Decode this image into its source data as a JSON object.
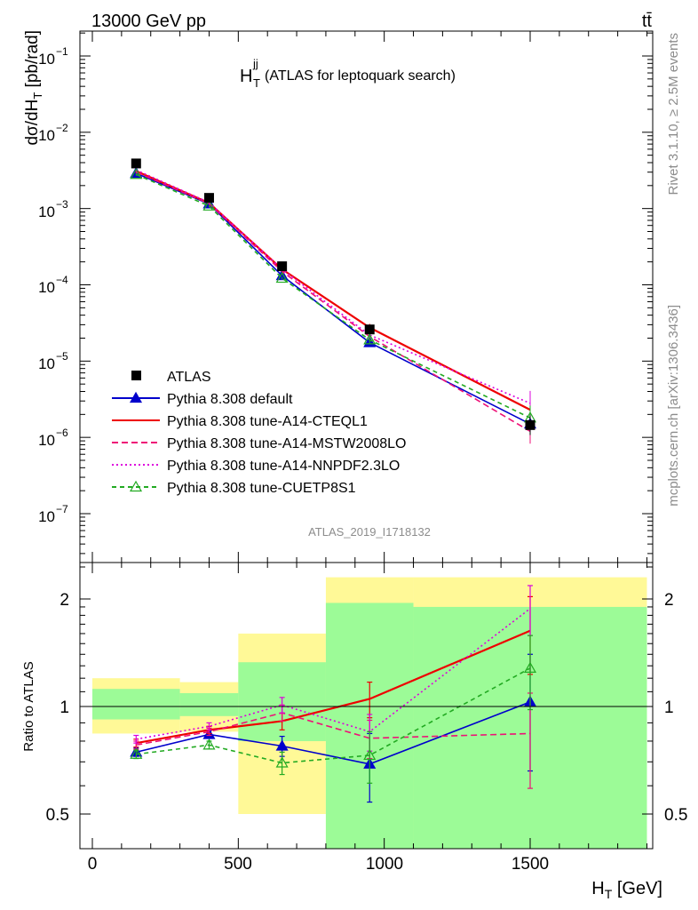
{
  "header": {
    "energy_label": "13000 GeV pp",
    "process_label": "tt̄",
    "title_main": "H",
    "title_sup": "jj",
    "title_sub": "T",
    "title_rest": " (ATLAS for leptoquark search)",
    "analysis_id": "ATLAS_2019_I1718132",
    "side_note_top": "Rivet 3.1.10, ≥ 2.5M events",
    "side_note_bottom": "mcplots.cern.ch [arXiv:1306.3436]"
  },
  "axes": {
    "main_ylabel_a": "dσ/dH",
    "main_ylabel_sub": "T",
    "main_ylabel_b": " [pb/rad]",
    "ratio_ylabel": "Ratio to ATLAS",
    "xlabel_a": "H",
    "xlabel_sub": "T",
    "xlabel_b": " [GeV]",
    "x_ticks": [
      "0",
      "500",
      "1000",
      "1500"
    ],
    "y_main_ticks": [
      {
        "base": "10",
        "exp": "−1"
      },
      {
        "base": "10",
        "exp": "−2"
      },
      {
        "base": "10",
        "exp": "−3"
      },
      {
        "base": "10",
        "exp": "−4"
      },
      {
        "base": "10",
        "exp": "−5"
      },
      {
        "base": "10",
        "exp": "−6"
      },
      {
        "base": "10",
        "exp": "−7"
      }
    ],
    "y_ratio_ticks": [
      "2",
      "1",
      "0.5"
    ]
  },
  "chart_data": {
    "type": "line",
    "x_range": [
      -40,
      1900
    ],
    "main": {
      "yscale": "log",
      "ylim": [
        1e-08,
        0.2
      ],
      "x": [
        150,
        400,
        650,
        950,
        1500
      ],
      "data": {
        "name": "ATLAS",
        "x_bins": [
          [
            0,
            300
          ],
          [
            300,
            500
          ],
          [
            500,
            800
          ],
          [
            800,
            1100
          ],
          [
            1100,
            1900
          ]
        ],
        "values": [
          0.0039,
          0.00138,
          0.000175,
          2.6e-05,
          1.45e-06
        ]
      },
      "series": [
        {
          "name": "Pythia 8.308 default",
          "color": "#0000cc",
          "dash": "",
          "marker": "filled-triangle",
          "values": [
            0.0029,
            0.00115,
            0.000132,
            1.75e-05,
            1.5e-06
          ]
        },
        {
          "name": "Pythia 8.308 tune-A14-CTEQL1",
          "color": "#ee0000",
          "dash": "",
          "marker": "",
          "values": [
            0.0031,
            0.00118,
            0.00016,
            2.75e-05,
            2.3e-06
          ]
        },
        {
          "name": "Pythia 8.308 tune-A14-MSTW2008LO",
          "color": "#ee1177",
          "dash": "7,4",
          "marker": "",
          "values": [
            0.003,
            0.00116,
            0.00015,
            2.1e-05,
            1.2e-06
          ]
        },
        {
          "name": "Pythia 8.308 tune-A14-NNPDF2.3LO",
          "color": "#dd00dd",
          "dash": "2,3",
          "marker": "",
          "values": [
            0.0032,
            0.0012,
            0.00016,
            2.2e-05,
            2.8e-06
          ]
        },
        {
          "name": "Pythia 8.308 tune-CUETP8S1",
          "color": "#22aa22",
          "dash": "5,4",
          "marker": "open-triangle",
          "values": [
            0.0028,
            0.00108,
            0.000122,
            1.9e-05,
            1.8e-06
          ]
        }
      ]
    },
    "ratio": {
      "yscale": "log",
      "ylim": [
        0.4,
        2.3
      ],
      "bands": [
        {
          "x": [
            0,
            300
          ],
          "yellow": [
            0.84,
            1.2
          ],
          "green": [
            0.92,
            1.12
          ]
        },
        {
          "x": [
            300,
            500
          ],
          "yellow": [
            0.85,
            1.17
          ],
          "green": [
            0.94,
            1.09
          ]
        },
        {
          "x": [
            500,
            800
          ],
          "yellow": [
            0.5,
            1.6
          ],
          "green": [
            0.8,
            1.33
          ]
        },
        {
          "x": [
            800,
            1100
          ],
          "yellow": [
            0.4,
            2.3
          ],
          "green": [
            0.4,
            1.95
          ]
        },
        {
          "x": [
            1100,
            1900
          ],
          "yellow": [
            0.4,
            2.3
          ],
          "green": [
            0.4,
            1.9
          ]
        }
      ],
      "series": [
        {
          "name": "Pythia 8.308 default",
          "values": [
            0.745,
            0.835,
            0.775,
            0.69,
            1.03
          ],
          "err": [
            0.02,
            0.02,
            0.05,
            0.15,
            0.37
          ]
        },
        {
          "name": "Pythia 8.308 tune-A14-CTEQL1",
          "values": [
            0.79,
            0.86,
            0.91,
            1.05,
            1.63
          ],
          "err": [
            0.02,
            0.02,
            0.05,
            0.12,
            0.4
          ]
        },
        {
          "name": "Pythia 8.308 tune-A14-MSTW2008LO",
          "values": [
            0.78,
            0.85,
            0.96,
            0.815,
            0.84
          ],
          "err": [
            0.02,
            0.02,
            0.05,
            0.1,
            0.25
          ]
        },
        {
          "name": "Pythia 8.308 tune-A14-NNPDF2.3LO",
          "values": [
            0.81,
            0.88,
            1.01,
            0.85,
            1.88
          ],
          "err": [
            0.02,
            0.02,
            0.05,
            0.1,
            0.3
          ]
        },
        {
          "name": "Pythia 8.308 tune-CUETP8S1",
          "values": [
            0.735,
            0.78,
            0.695,
            0.73,
            1.28
          ],
          "err": [
            0.02,
            0.02,
            0.05,
            0.12,
            0.3
          ]
        }
      ]
    }
  }
}
